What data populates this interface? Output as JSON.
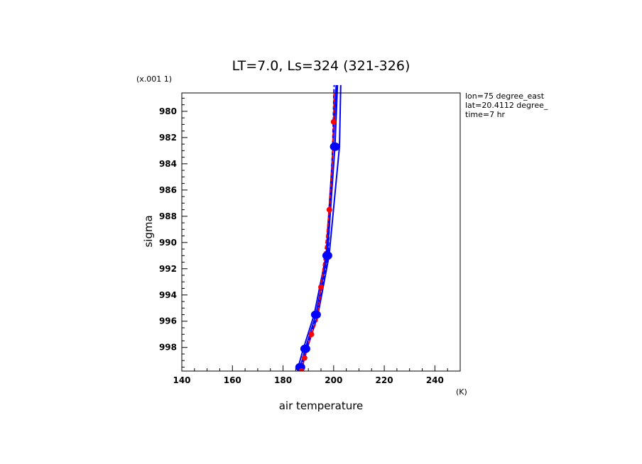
{
  "chart_data": {
    "type": "line",
    "title": "LT=7.0, Ls=324 (321-326)",
    "xlabel": "air temperature",
    "xunits": "(K)",
    "ylabel": "sigma",
    "yscale_label": "(x.001 1)",
    "xlim": [
      140,
      250
    ],
    "ylim": [
      999.8,
      978.6
    ],
    "x_ticks": [
      140,
      160,
      180,
      200,
      220,
      240
    ],
    "x_tick_labels": [
      "140",
      "160",
      "180",
      "200",
      "220",
      "240"
    ],
    "y_ticks": [
      980,
      982,
      984,
      986,
      988,
      990,
      992,
      994,
      996,
      998
    ],
    "y_tick_labels": [
      "980",
      "982",
      "984",
      "986",
      "988",
      "990",
      "992",
      "994",
      "996",
      "998"
    ],
    "annotations": [
      "lon=75 degree_east",
      "lat=20.4112 degree_",
      "time=7 hr"
    ],
    "colors": {
      "model": "#0000ff",
      "obs": "#ff0000",
      "axes": "#000000"
    },
    "series": [
      {
        "style": "solid",
        "color": "#0000ff",
        "points": [
          [
            186.8,
            999.5
          ],
          [
            188.8,
            998.1
          ],
          [
            193.0,
            995.5
          ],
          [
            197.5,
            991.0
          ],
          [
            200.5,
            982.7
          ],
          [
            201.5,
            978.0
          ]
        ]
      },
      {
        "style": "solid",
        "color": "#0000ff",
        "points": [
          [
            186.0,
            999.5
          ],
          [
            188.0,
            998.1
          ],
          [
            192.3,
            995.5
          ],
          [
            197.0,
            991.0
          ],
          [
            199.8,
            982.7
          ],
          [
            201.0,
            978.0
          ]
        ]
      },
      {
        "style": "solid",
        "color": "#0000ff",
        "points": [
          [
            187.5,
            999.5
          ],
          [
            189.5,
            998.1
          ],
          [
            193.8,
            995.5
          ],
          [
            198.2,
            991.0
          ],
          [
            202.3,
            982.7
          ],
          [
            202.8,
            978.0
          ]
        ]
      },
      {
        "style": "dashed",
        "color": "#0000ff",
        "points": [
          [
            187.0,
            999.5
          ],
          [
            189.2,
            998.1
          ],
          [
            193.4,
            995.5
          ],
          [
            197.8,
            991.0
          ],
          [
            198.8,
            986.3
          ],
          [
            199.6,
            982.7
          ],
          [
            200.2,
            978.0
          ]
        ]
      },
      {
        "style": "dashed",
        "color": "#ff0000",
        "points": [
          [
            187.3,
            999.8
          ],
          [
            188.5,
            998.8
          ],
          [
            191.2,
            997.0
          ],
          [
            193.5,
            995.9
          ],
          [
            195.0,
            993.4
          ],
          [
            197.0,
            990.0
          ],
          [
            198.3,
            987.5
          ],
          [
            199.5,
            984.0
          ],
          [
            200.0,
            980.8
          ],
          [
            200.2,
            978.6
          ]
        ]
      }
    ],
    "markers": [
      {
        "x": 186.8,
        "y": 999.5,
        "color": "#0000ff"
      },
      {
        "x": 188.8,
        "y": 998.1,
        "color": "#0000ff"
      },
      {
        "x": 193.0,
        "y": 995.5,
        "color": "#0000ff"
      },
      {
        "x": 197.5,
        "y": 991.0,
        "color": "#0000ff"
      },
      {
        "x": 200.5,
        "y": 982.7,
        "color": "#0000ff"
      },
      {
        "x": 187.3,
        "y": 999.8,
        "color": "#ff0000"
      },
      {
        "x": 188.5,
        "y": 998.8,
        "color": "#ff0000"
      },
      {
        "x": 191.2,
        "y": 997.0,
        "color": "#ff0000"
      },
      {
        "x": 195.0,
        "y": 993.4,
        "color": "#ff0000"
      },
      {
        "x": 198.3,
        "y": 987.5,
        "color": "#ff0000"
      },
      {
        "x": 200.0,
        "y": 980.8,
        "color": "#ff0000"
      }
    ]
  }
}
